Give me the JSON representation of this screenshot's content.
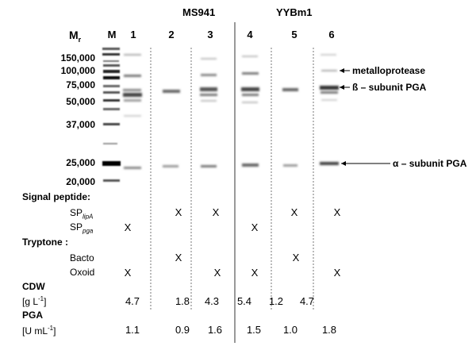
{
  "groups": {
    "left": "MS941",
    "right": "YYBm1"
  },
  "mr_label": "M",
  "mr_sub": "r",
  "lanes": [
    "M",
    "1",
    "2",
    "3",
    "4",
    "5",
    "6"
  ],
  "markers": [
    "150,000",
    "100,000",
    "75,000",
    "50,000",
    "37,000",
    "25,000",
    "20,000"
  ],
  "annotations": {
    "metalloprotease": "metalloprotease",
    "beta": "ß – subunit PGA",
    "alpha": "α – subunit PGA"
  },
  "table": {
    "signal_peptide": "Signal peptide:",
    "sp_prefix": "SP",
    "sp_lipa_sub": "lipA",
    "sp_pga_sub": "pga",
    "tryptone": "Tryptone :",
    "bacto": "Bacto",
    "oxoid": "Oxoid",
    "cdw": "CDW",
    "cdw_unit": "[g L",
    "cdw_unit_sup": "-1",
    "cdw_unit_end": "]",
    "pga": "PGA",
    "pga_unit": "[U mL",
    "pga_unit_sup": "-1",
    "pga_unit_end": "]",
    "mark": "X",
    "sp_lipa": [
      "",
      "X",
      "X",
      "",
      "X",
      "X"
    ],
    "sp_pga": [
      "X",
      "",
      "",
      "X",
      "",
      ""
    ],
    "bacto_row": [
      "",
      "X",
      "",
      "",
      "X",
      ""
    ],
    "oxoid_row": [
      "X",
      "",
      "X",
      "X",
      "",
      "X"
    ],
    "cdw_values": [
      "4.7",
      "1.8",
      "4.3",
      "5.4",
      "1.2",
      "4.7"
    ],
    "pga_values": [
      "1.1",
      "0.9",
      "1.6",
      "1.5",
      "1.0",
      "1.8"
    ]
  }
}
